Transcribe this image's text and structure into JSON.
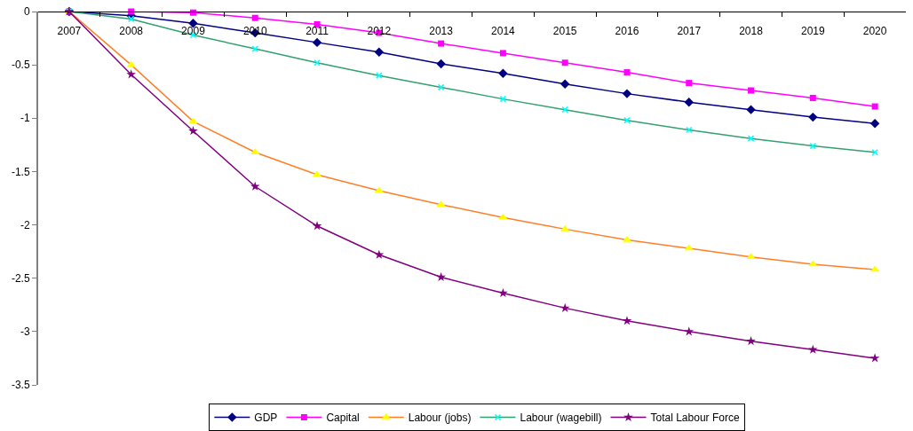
{
  "chart_data": {
    "type": "line",
    "categories": [
      "2007",
      "2008",
      "2009",
      "2010",
      "2011",
      "2012",
      "2013",
      "2014",
      "2015",
      "2016",
      "2017",
      "2018",
      "2019",
      "2020"
    ],
    "ylim": [
      -3.5,
      0
    ],
    "yticks": [
      0,
      -0.5,
      -1,
      -1.5,
      -2,
      -2.5,
      -3,
      -3.5
    ],
    "legend": "bottom",
    "series": [
      {
        "name": "GDP",
        "color": "#000080",
        "marker": "diamond",
        "values": [
          0,
          -0.04,
          -0.11,
          -0.2,
          -0.29,
          -0.38,
          -0.49,
          -0.58,
          -0.68,
          -0.77,
          -0.85,
          -0.92,
          -0.99,
          -1.05
        ]
      },
      {
        "name": "Capital",
        "color": "#ff00ff",
        "marker": "square",
        "values": [
          0,
          0,
          -0.01,
          -0.06,
          -0.12,
          -0.2,
          -0.3,
          -0.39,
          -0.48,
          -0.57,
          -0.67,
          -0.74,
          -0.81,
          -0.89
        ]
      },
      {
        "name": "Labour (jobs)",
        "color": "#ff7f27",
        "colors": [
          "#ffff00",
          "#ffff00",
          "#ffff00",
          "#ffff00",
          "#ffff00",
          "#ffff00",
          "#ffff00",
          "#ffff00",
          "#ffff00",
          "#ffff00",
          "#ffff00",
          "#ffff00",
          "#ffff00",
          "#ffff00"
        ],
        "marker": "triangle",
        "values": [
          0,
          -0.5,
          -1.03,
          -1.32,
          -1.53,
          -1.68,
          -1.81,
          -1.93,
          -2.04,
          -2.14,
          -2.22,
          -2.3,
          -2.37,
          -2.42
        ]
      },
      {
        "name": "Labour (wagebill)",
        "color": "#33a070",
        "colors": [
          "#00ffff",
          "#00ffff",
          "#00ffff",
          "#00ffff",
          "#00ffff",
          "#00ffff",
          "#00ffff",
          "#00ffff",
          "#00ffff",
          "#00ffff",
          "#00ffff",
          "#00ffff",
          "#00ffff",
          "#00ffff"
        ],
        "marker": "cross",
        "values": [
          0,
          -0.07,
          -0.22,
          -0.35,
          -0.48,
          -0.6,
          -0.71,
          -0.82,
          -0.92,
          -1.02,
          -1.11,
          -1.19,
          -1.26,
          -1.32
        ]
      },
      {
        "name": "Total Labour Force",
        "color": "#800080",
        "marker": "star",
        "values": [
          0,
          -0.59,
          -1.12,
          -1.64,
          -2.01,
          -2.28,
          -2.49,
          -2.64,
          -2.78,
          -2.9,
          -3.0,
          -3.09,
          -3.17,
          -3.25
        ]
      }
    ]
  }
}
